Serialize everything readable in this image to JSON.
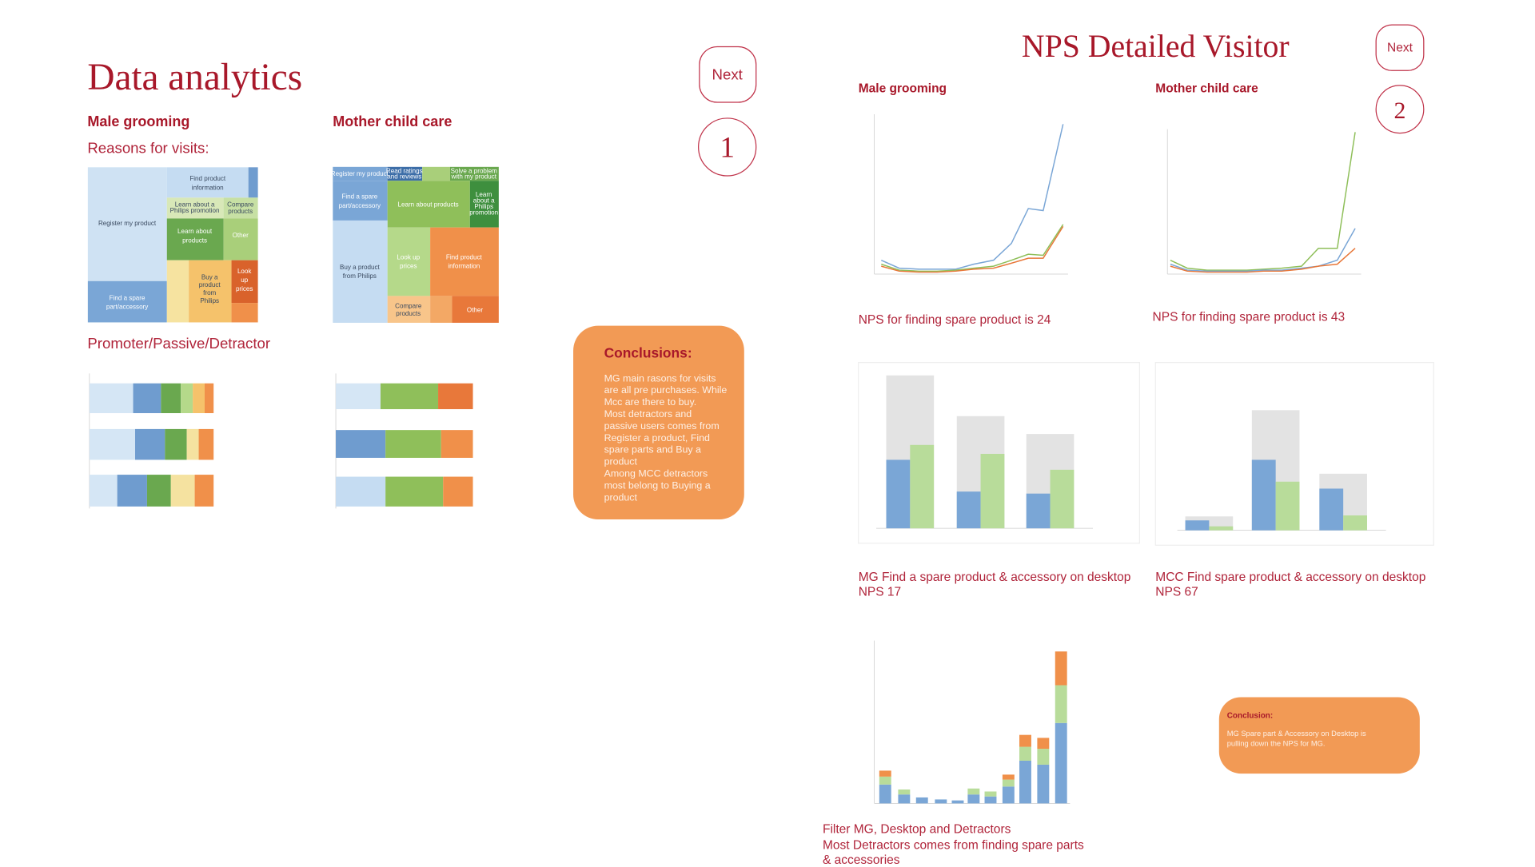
{
  "left": {
    "title": "Data analytics",
    "next": "Next",
    "step": "1",
    "male": "Male grooming",
    "mother": "Mother child care",
    "reasons": "Reasons for visits:",
    "ppd": "Promoter/Passive/Detractor",
    "treemap_mg": {
      "register": [
        "Register my product"
      ],
      "spare": [
        "Find a spare",
        "part/accessory"
      ],
      "info": [
        "Find product",
        "information"
      ],
      "promo": [
        "Learn about a",
        "Philips promotion"
      ],
      "compare": [
        "Compare",
        "products"
      ],
      "learn": [
        "Learn about",
        "products"
      ],
      "other": [
        "Other"
      ],
      "buy": [
        "Buy a",
        "product",
        "from",
        "Philips"
      ],
      "prices": [
        "Look",
        "up",
        "prices"
      ]
    },
    "treemap_mcc": {
      "register": [
        "Register my product"
      ],
      "ratings": [
        "Read ratings",
        "and reviews"
      ],
      "solve": [
        "Solve a problem",
        "with my product"
      ],
      "spare": [
        "Find a spare",
        "part/accessory"
      ],
      "learn": [
        "Learn about products"
      ],
      "promo": [
        "Learn",
        "about a",
        "Philips",
        "promotion"
      ],
      "buy": [
        "Buy a product",
        "from Philips"
      ],
      "prices": [
        "Look up",
        "prices"
      ],
      "info": [
        "Find product",
        "information"
      ],
      "compare": [
        "Compare",
        "products"
      ],
      "other": [
        "Other"
      ]
    },
    "conclusions": {
      "title": "Conclusions:",
      "lines": [
        "MG main rasons for visits",
        "are all pre purchases. While",
        "Mcc are there to buy.",
        "Most detractors and",
        "passive users comes from",
        "Register a product, Find",
        "spare parts and Buy a",
        "product",
        "Among MCC detractors",
        "most belong to Buying a",
        "product"
      ]
    }
  },
  "right": {
    "title": "NPS Detailed Visitor",
    "next": "Next",
    "step": "2",
    "male": "Male grooming",
    "mother": "Mother child care",
    "nps_mg": "NPS  for finding spare product is 24",
    "nps_mcc": "NPS  for finding spare product is 43",
    "caption_mg": [
      "MG Find a spare product & accessory on desktop",
      "NPS  17"
    ],
    "caption_mcc": [
      "MCC  Find spare product & accessory on desktop",
      "NPS  67"
    ],
    "caption_filter": [
      "Filter MG, Desktop and Detractors",
      "Most Detractors comes from finding spare parts",
      "& accessories"
    ],
    "conclusion": {
      "title": "Conclusion:",
      "lines": [
        "MG  Spare part & Accessory  on Desktop is",
        "pulling down the NPS for MG."
      ]
    }
  }
}
